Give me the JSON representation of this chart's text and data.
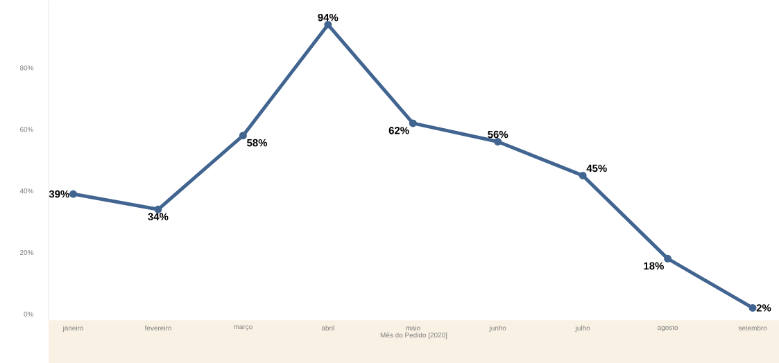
{
  "chart_data": {
    "type": "line",
    "xlabel": "Mês do Pedido [2020]",
    "categories": [
      "janeiro",
      "fevereiro",
      "março",
      "abril",
      "maio",
      "junho",
      "julho",
      "agosto",
      "setembro"
    ],
    "values": [
      39,
      34,
      58,
      94,
      62,
      56,
      45,
      18,
      2
    ],
    "value_labels": [
      "39%",
      "34%",
      "58%",
      "94%",
      "62%",
      "56%",
      "45%",
      "18%",
      "2%"
    ],
    "color": "#416590",
    "marker": "circle",
    "line_style": "solid",
    "ylim": [
      -2,
      102
    ],
    "yticks": [
      {
        "value": 0,
        "label": "0%"
      },
      {
        "value": 20,
        "label": "20%"
      },
      {
        "value": 40,
        "label": "40%"
      },
      {
        "value": 60,
        "label": "60%"
      },
      {
        "value": 80,
        "label": "80%"
      }
    ],
    "grid": false
  }
}
